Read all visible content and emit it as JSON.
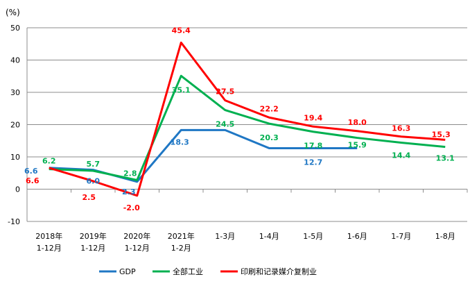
{
  "chart_data": {
    "type": "line",
    "ylabel": "(%)",
    "ylim": [
      -10,
      50
    ],
    "yticks": [
      -10,
      0,
      10,
      20,
      30,
      40,
      50
    ],
    "grid": true,
    "legend_position": "bottom",
    "categories": [
      [
        "2018年",
        "1-12月"
      ],
      [
        "2019年",
        "1-12月"
      ],
      [
        "2020年",
        "1-12月"
      ],
      [
        "2021年",
        "1-2月"
      ],
      [
        "1-3月"
      ],
      [
        "1-4月"
      ],
      [
        "1-5月"
      ],
      [
        "1-6月"
      ],
      [
        "1-7月"
      ],
      [
        "1-8月"
      ]
    ],
    "series": [
      {
        "name": "GDP",
        "color": "#1f77c4",
        "values": [
          6.6,
          6.0,
          2.3,
          18.3,
          18.3,
          12.7,
          12.7,
          12.7,
          null,
          null
        ],
        "labels": [
          "6.6",
          "6.0",
          "2.3",
          "18.3",
          "",
          "",
          "12.7",
          "",
          "",
          ""
        ]
      },
      {
        "name": "全部工业",
        "color": "#00b050",
        "values": [
          6.2,
          5.7,
          2.8,
          35.1,
          24.5,
          20.3,
          17.8,
          15.9,
          14.4,
          13.1
        ],
        "labels": [
          "6.2",
          "5.7",
          "2.8",
          "35.1",
          "24.5",
          "20.3",
          "17.8",
          "15.9",
          "14.4",
          "13.1"
        ]
      },
      {
        "name": "印刷和记录媒介复制业",
        "color": "#ff0000",
        "values": [
          6.6,
          2.5,
          -2.0,
          45.4,
          27.5,
          22.2,
          19.4,
          18.0,
          16.3,
          15.3
        ],
        "labels": [
          "6.6",
          "2.5",
          "-2.0",
          "45.4",
          "27.5",
          "22.2",
          "19.4",
          "18.0",
          "16.3",
          "15.3"
        ]
      }
    ]
  }
}
